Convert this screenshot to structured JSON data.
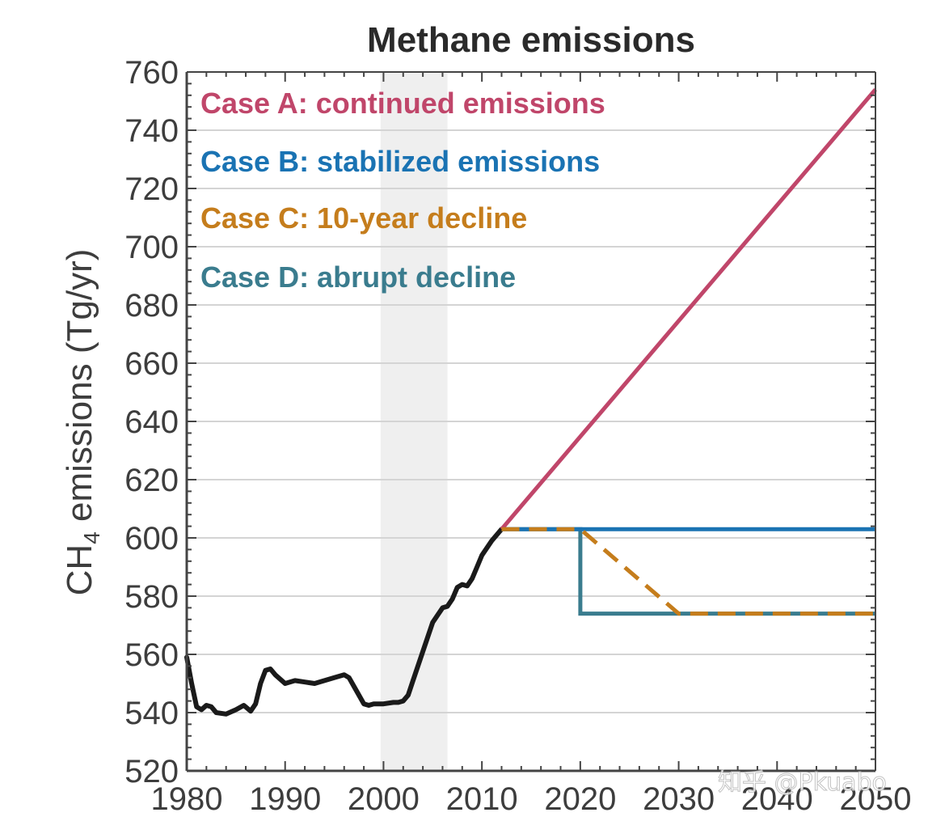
{
  "chart_data": {
    "type": "line",
    "title": "Methane emissions",
    "ylabel_main": "CH",
    "ylabel_sub": "4",
    "ylabel_rest": " emissions (Tg/yr)",
    "xlim": [
      1980,
      2050
    ],
    "ylim": [
      520,
      760
    ],
    "x_ticks": [
      "1980",
      "1990",
      "2000",
      "2010",
      "2020",
      "2030",
      "2040",
      "2050"
    ],
    "y_ticks": [
      "520",
      "540",
      "560",
      "580",
      "600",
      "620",
      "640",
      "660",
      "680",
      "700",
      "720",
      "740",
      "760"
    ],
    "grid": "horizontal",
    "legend_position": "top-left",
    "shaded_period": [
      1999.7,
      2006.5
    ],
    "historical": {
      "color": "#1a1a1a",
      "x": [
        1980,
        1980.5,
        1981,
        1981.5,
        1982,
        1982.5,
        1983,
        1984,
        1985,
        1985.8,
        1986.5,
        1987,
        1987.5,
        1988,
        1988.5,
        1989,
        1990,
        1991,
        1992,
        1993,
        1994,
        1995,
        1996,
        1996.5,
        1997,
        1997.5,
        1998,
        1998.5,
        1999,
        2000,
        2001,
        2001.5,
        2002,
        2002.5,
        2003,
        2004,
        2005,
        2006,
        2006.5,
        2007,
        2007.5,
        2008,
        2008.5,
        2009,
        2009.5,
        2010,
        2011,
        2012
      ],
      "y": [
        559,
        550,
        542,
        541,
        542.5,
        542,
        540,
        539.5,
        541,
        542.5,
        540.5,
        543,
        550,
        554.5,
        555,
        553,
        550,
        551,
        550.5,
        550,
        551,
        552,
        553,
        552,
        549,
        546,
        543,
        542.5,
        543,
        543,
        543.5,
        543.5,
        544,
        546,
        551,
        561,
        571,
        576,
        576.5,
        579,
        583,
        584,
        583.5,
        586,
        590,
        594,
        599,
        603
      ]
    },
    "series": [
      {
        "name": "Case A: continued emissions",
        "color": "#c0466a",
        "style": "solid",
        "x": [
          2012,
          2050
        ],
        "y": [
          603,
          754
        ]
      },
      {
        "name": "Case B: stabilized emissions",
        "color": "#1a73b3",
        "style": "solid",
        "x": [
          2012,
          2050
        ],
        "y": [
          603,
          603
        ]
      },
      {
        "name": "Case C: 10-year decline",
        "color": "#c57d1c",
        "style": "dashed",
        "x": [
          2012,
          2020,
          2030,
          2050
        ],
        "y": [
          603,
          603,
          574,
          574
        ]
      },
      {
        "name": "Case D: abrupt decline",
        "color": "#3a7c8e",
        "style": "solid",
        "x": [
          2012,
          2020,
          2020,
          2050
        ],
        "y": [
          603,
          603,
          574,
          574
        ]
      }
    ]
  },
  "watermark": "知乎 @Pkuabo"
}
